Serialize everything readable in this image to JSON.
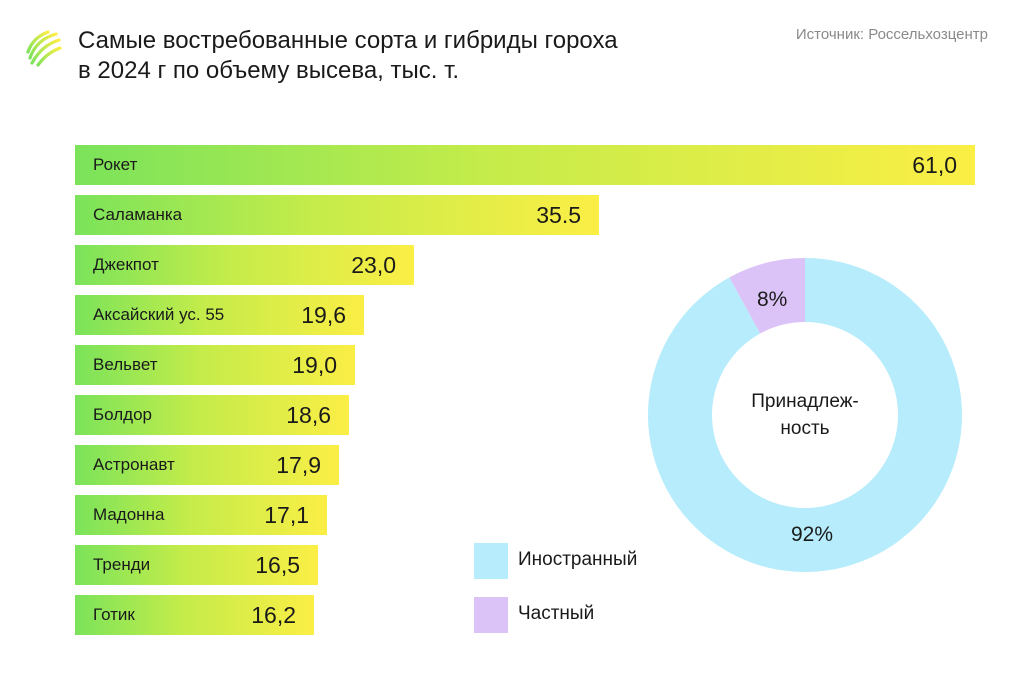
{
  "header": {
    "title_line1": "Самые востребованные сорта и гибриды гороха",
    "title_line2": "в 2024 г по объему высева, тыс. т.",
    "source": "Источник: Россельхозцентр"
  },
  "colors": {
    "bar_gradient": [
      "#7be35a",
      "#c4ec4a",
      "#fbee45"
    ],
    "foreign": "#b6ecfb",
    "private": "#dcc3f7"
  },
  "chart_data": [
    {
      "type": "bar",
      "orientation": "horizontal",
      "title": "Самые востребованные сорта и гибриды гороха в 2024 г по объему высева, тыс. т.",
      "categories": [
        "Рокет",
        "Саламанка",
        "Джекпот",
        "Аксайский ус. 55",
        "Вельвет",
        "Болдор",
        "Астронавт",
        "Мадонна",
        "Тренди",
        "Готик"
      ],
      "values": [
        61.0,
        35.5,
        23.0,
        19.6,
        19.0,
        18.6,
        17.9,
        17.1,
        16.5,
        16.2
      ],
      "value_labels": [
        "61,0",
        "35.5",
        "23,0",
        "19,6",
        "19,0",
        "18,6",
        "17,9",
        "17,1",
        "16,5",
        "16,2"
      ],
      "xlim": [
        0,
        61.0
      ]
    },
    {
      "type": "pie",
      "subtype": "donut",
      "center_label_line1": "Принадлеж-",
      "center_label_line2": "ность",
      "slices": [
        {
          "name": "Иностранный",
          "value": 92,
          "label": "92%",
          "color": "#b6ecfb"
        },
        {
          "name": "Частный",
          "value": 8,
          "label": "8%",
          "color": "#dcc3f7"
        }
      ]
    }
  ]
}
